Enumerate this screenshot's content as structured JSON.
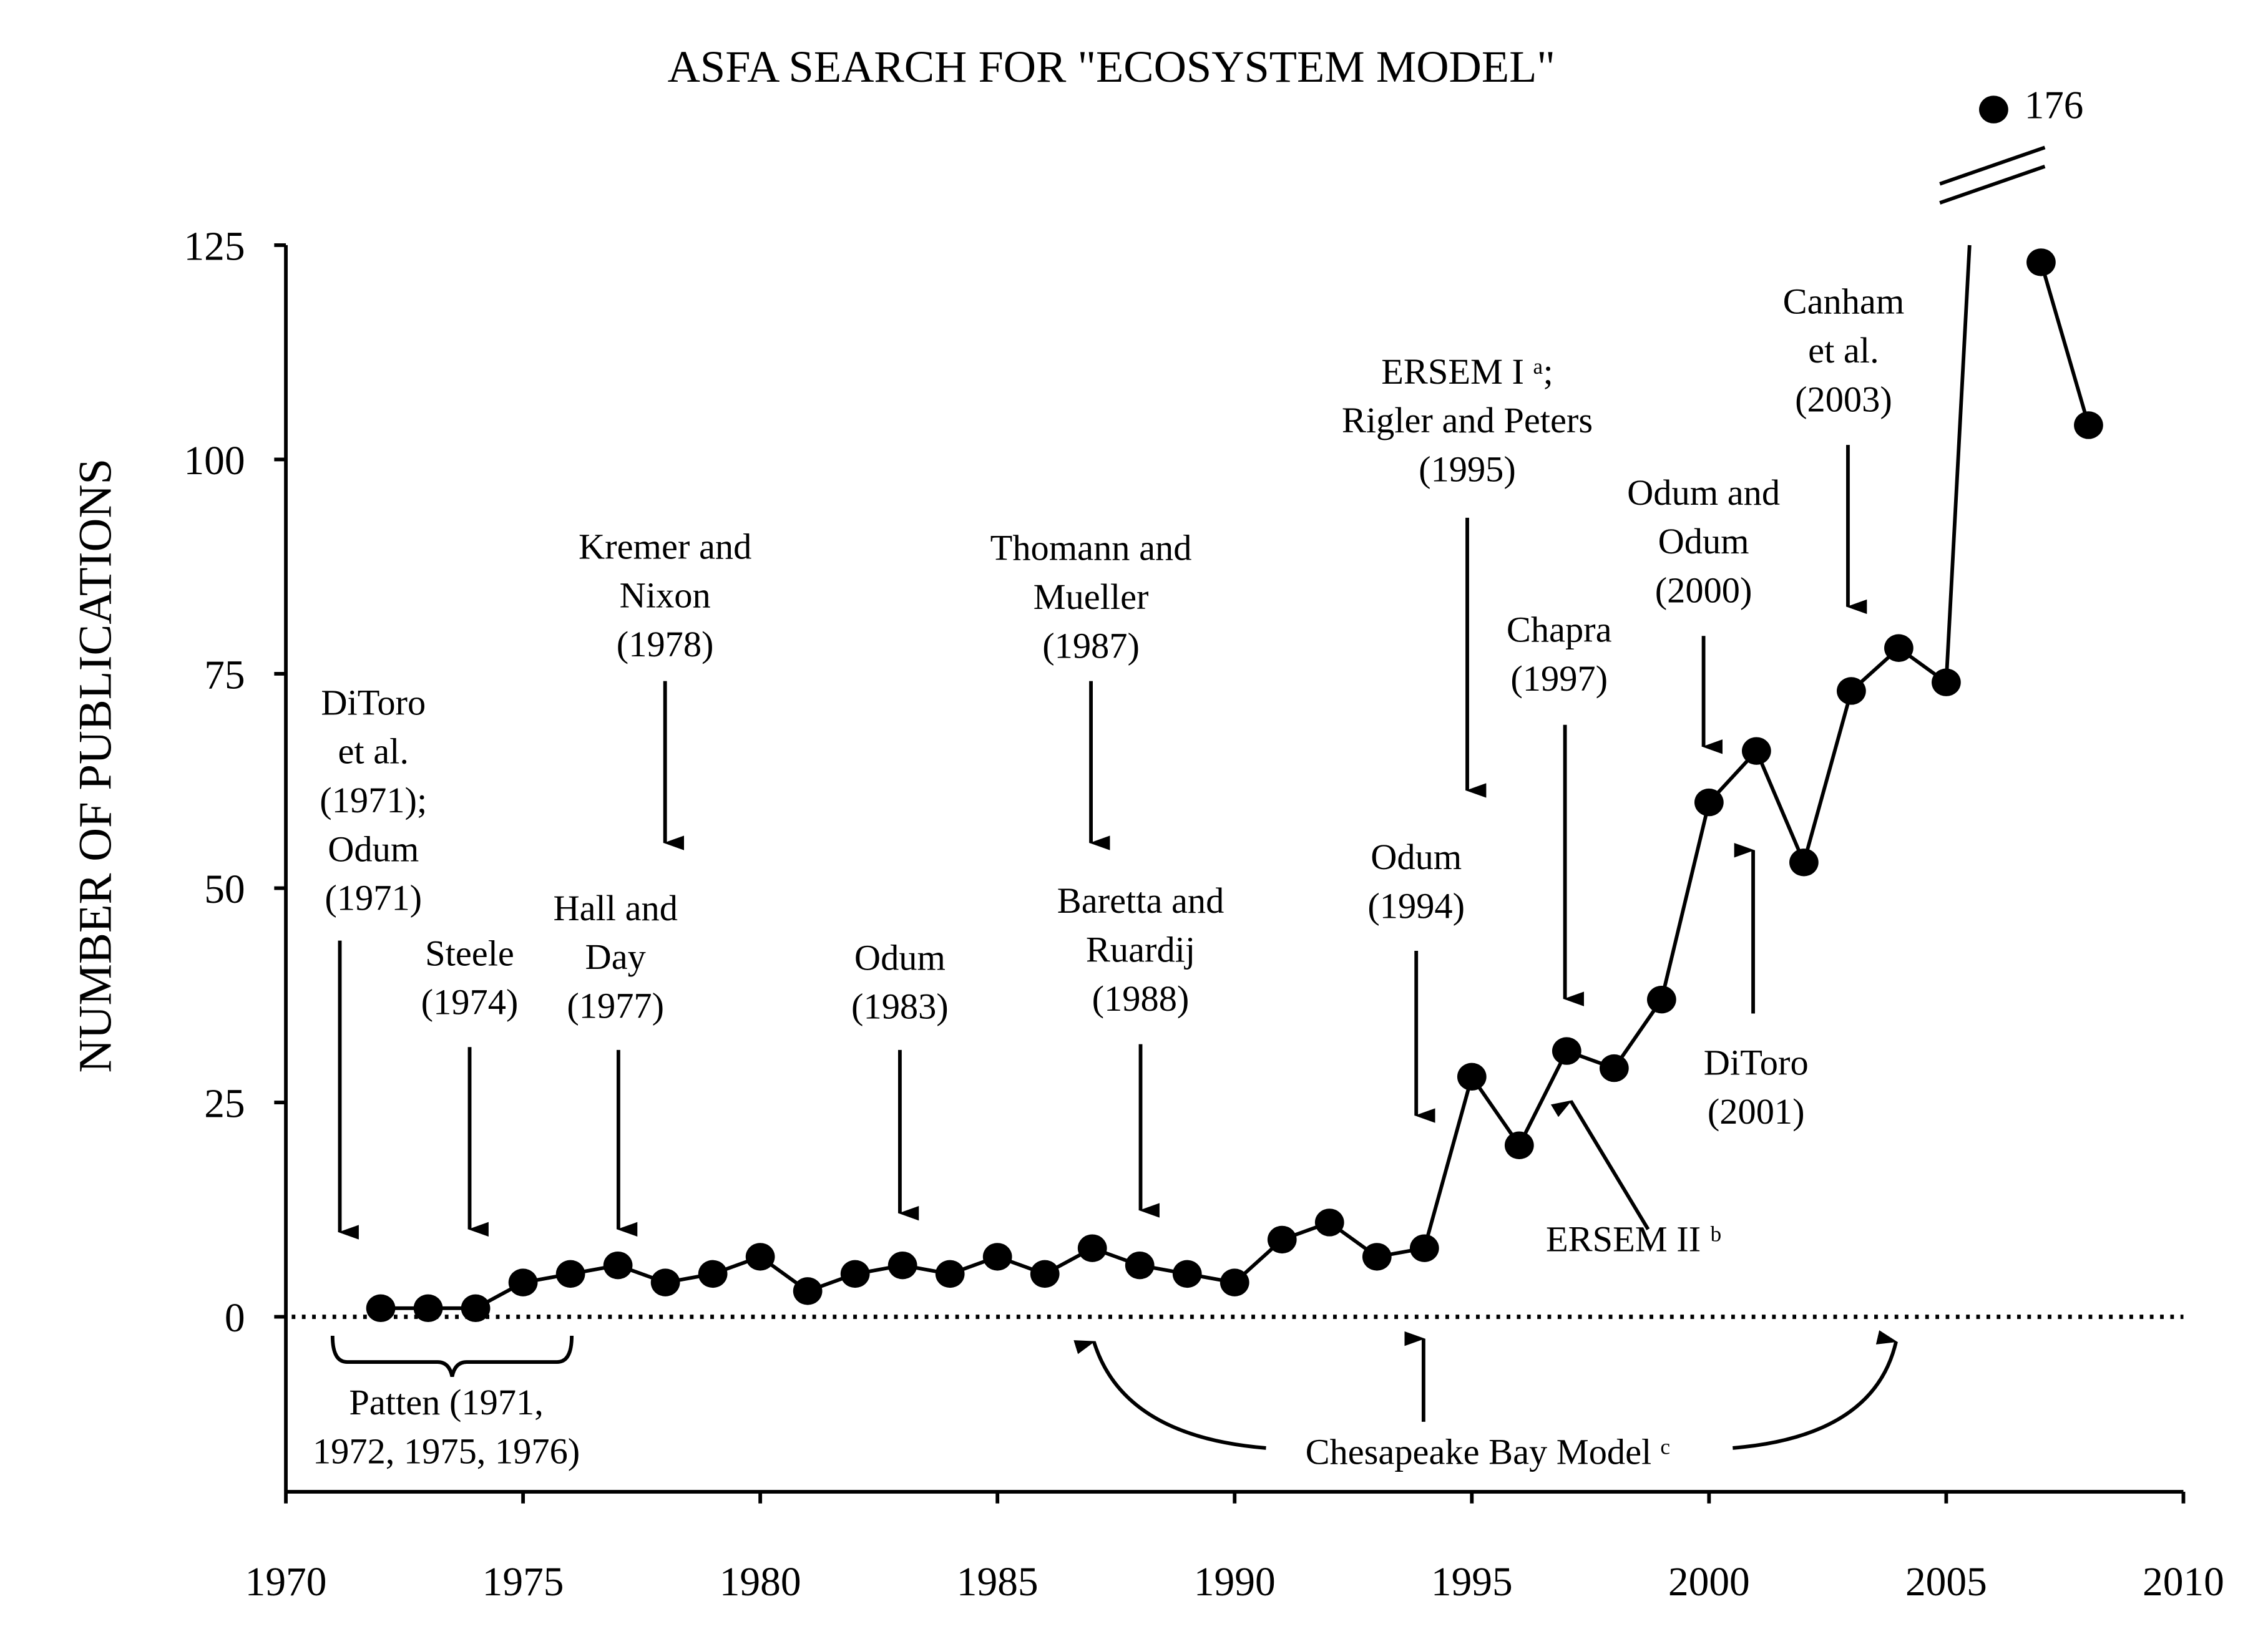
{
  "chart_data": {
    "type": "line",
    "title": "ASFA SEARCH FOR \"ECOSYSTEM MODEL\"",
    "xlabel": "",
    "ylabel": "NUMBER OF PUBLICATIONS",
    "xlim": [
      1970,
      2010
    ],
    "ylim": [
      0,
      125
    ],
    "x_ticks": [
      "1970",
      "1975",
      "1980",
      "1985",
      "1990",
      "1995",
      "2000",
      "2005",
      "2010"
    ],
    "y_ticks": [
      "0",
      "25",
      "50",
      "75",
      "100",
      "125"
    ],
    "grid": false,
    "series": [
      {
        "name": "publications",
        "x": [
          1972,
          1973,
          1974,
          1975,
          1976,
          1977,
          1978,
          1979,
          1980,
          1981,
          1982,
          1983,
          1984,
          1985,
          1986,
          1987,
          1988,
          1989,
          1990,
          1991,
          1992,
          1993,
          1994,
          1995,
          1996,
          1997,
          1998,
          1999,
          2000,
          2001,
          2002,
          2003,
          2004,
          2005,
          2006,
          2007,
          2008
        ],
        "values": [
          1,
          1,
          1,
          4,
          5,
          6,
          4,
          5,
          7,
          3,
          5,
          6,
          5,
          7,
          5,
          8,
          6,
          5,
          4,
          9,
          11,
          7,
          8,
          28,
          20,
          31,
          29,
          37,
          60,
          66,
          53,
          73,
          78,
          74,
          176,
          123,
          104
        ]
      }
    ],
    "axis_break": {
      "value": 176,
      "label": "176"
    },
    "annotations": [
      {
        "lines": [
          "DiToro",
          "et al.",
          "(1971);",
          "Odum",
          "(1971)"
        ],
        "year": 1971
      },
      {
        "lines": [
          "Steele",
          "(1974)"
        ],
        "year": 1974
      },
      {
        "lines": [
          "Hall and",
          "Day",
          "(1977)"
        ],
        "year": 1977
      },
      {
        "lines": [
          "Kremer and",
          "Nixon",
          "(1978)"
        ],
        "year": 1978
      },
      {
        "lines": [
          "Odum",
          "(1983)"
        ],
        "year": 1983
      },
      {
        "lines": [
          "Thomann and",
          "Mueller",
          "(1987)"
        ],
        "year": 1987
      },
      {
        "lines": [
          "Baretta and",
          "Ruardij",
          "(1988)"
        ],
        "year": 1988
      },
      {
        "lines": [
          "ERSEM I ᵃ;",
          "Rigler and Peters",
          "(1995)"
        ],
        "year": 1995
      },
      {
        "lines": [
          "Odum",
          "(1994)"
        ],
        "year": 1994
      },
      {
        "lines": [
          "Chapra",
          "(1997)"
        ],
        "year": 1997
      },
      {
        "lines": [
          "Odum and",
          "Odum",
          "(2000)"
        ],
        "year": 2000
      },
      {
        "lines": [
          "Canham",
          "et al.",
          "(2003)"
        ],
        "year": 2003
      },
      {
        "lines": [
          "DiToro",
          "(2001)"
        ],
        "year": 2001
      },
      {
        "lines": [
          "ERSEM II ᵇ"
        ],
        "year": 1997
      },
      {
        "lines": [
          "Patten  (1971,",
          "1972, 1975, 1976)"
        ],
        "year": 1971
      },
      {
        "lines": [
          "Chesapeake Bay Model  ᶜ"
        ],
        "year": 1994
      }
    ]
  }
}
